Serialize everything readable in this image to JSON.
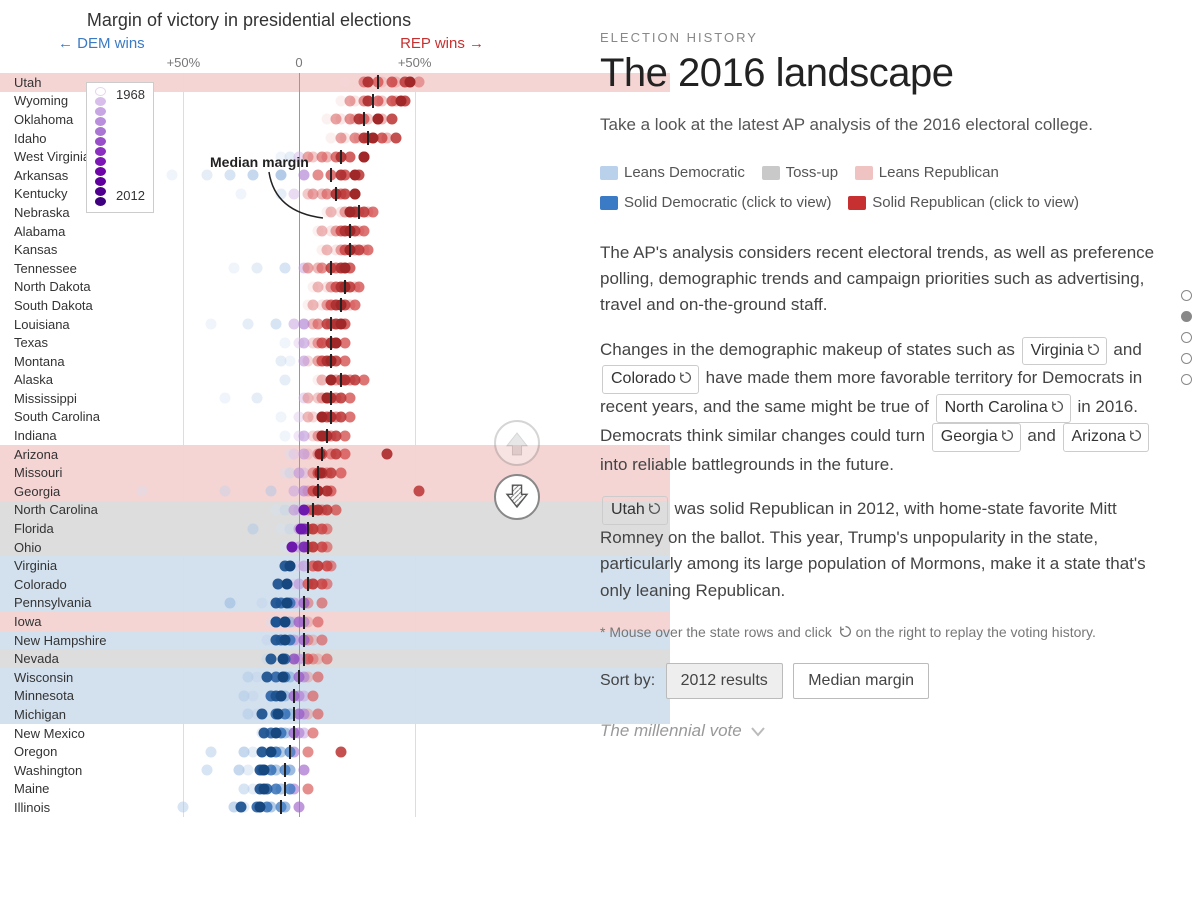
{
  "chart": {
    "title": "Margin of victory in presidential elections",
    "dem_label": "← DEM wins",
    "rep_label": "REP wins →",
    "axis_ticks": [
      {
        "label": "+50%",
        "value": -50
      },
      {
        "label": "0",
        "value": 0
      },
      {
        "label": "+50%",
        "value": 50
      }
    ],
    "xlim": [
      -80,
      80
    ],
    "median_label": "Median margin",
    "year_legend": {
      "start": "1968",
      "end": "2012"
    },
    "legend_colors": [
      "#e6d4f0",
      "#d8bfeb",
      "#c8a6e3",
      "#b98edc",
      "#a976d3",
      "#994ec9",
      "#8a2fbf",
      "#7b17b4",
      "#6d05a9",
      "#5f009e",
      "#4f008f",
      "#3f0080"
    ],
    "dem_palette": [
      "#d5e3f3",
      "#bfd4ec",
      "#a9c5e5",
      "#93b6de",
      "#7da6d6",
      "#6897cf",
      "#5288c8",
      "#3c79c1",
      "#2d6bb5",
      "#255fa3",
      "#1e5391",
      "#17477f"
    ],
    "rep_palette": [
      "#f6d6d6",
      "#f1c2c2",
      "#ecaeae",
      "#e79a9a",
      "#e28686",
      "#dd7272",
      "#d85e5e",
      "#d34a4a",
      "#c94040",
      "#bc3838",
      "#ae3030",
      "#a12828"
    ],
    "purple_palette": [
      "#e6d4f0",
      "#dbc3ea",
      "#d0b2e4",
      "#c5a1de",
      "#ba90d8",
      "#af7fd2",
      "#a46ecc",
      "#995dc6",
      "#8e4cc0",
      "#833bba",
      "#782ab4",
      "#6d19ae"
    ],
    "categories": {
      "leans_rep": "#f5d4d4",
      "tossup": "#dddddd",
      "leans_dem": "#d3e1ef"
    },
    "states": [
      {
        "name": "Utah",
        "band": "leans_rep",
        "median": 34,
        "dots": [
          20,
          30,
          36,
          42,
          48,
          52,
          28,
          34,
          40,
          46,
          30,
          48
        ]
      },
      {
        "name": "Wyoming",
        "band": null,
        "median": 32,
        "dots": [
          18,
          24,
          30,
          36,
          42,
          22,
          28,
          34,
          40,
          46,
          30,
          44
        ]
      },
      {
        "name": "Oklahoma",
        "band": null,
        "median": 28,
        "dots": [
          12,
          18,
          24,
          30,
          36,
          16,
          22,
          28,
          34,
          40,
          26,
          34
        ]
      },
      {
        "name": "Idaho",
        "band": null,
        "median": 30,
        "dots": [
          14,
          20,
          26,
          32,
          38,
          18,
          24,
          30,
          36,
          42,
          28,
          32
        ]
      },
      {
        "name": "West Virginia",
        "band": null,
        "median": 18,
        "dots": [
          -8,
          -4,
          0,
          6,
          12,
          4,
          10,
          16,
          22,
          28,
          18,
          28
        ]
      },
      {
        "name": "Arkansas",
        "band": null,
        "median": 14,
        "dots": [
          -55,
          -40,
          -30,
          -20,
          -8,
          2,
          8,
          14,
          20,
          26,
          18,
          24
        ]
      },
      {
        "name": "Kentucky",
        "band": null,
        "median": 16,
        "dots": [
          -25,
          -8,
          -2,
          4,
          10,
          6,
          12,
          18,
          24,
          20,
          16,
          24
        ]
      },
      {
        "name": "Nebraska",
        "band": null,
        "median": 26,
        "dots": [
          12,
          18,
          24,
          30,
          14,
          20,
          26,
          32,
          22,
          28,
          24,
          22
        ]
      },
      {
        "name": "Alabama",
        "band": null,
        "median": 22,
        "dots": [
          8,
          14,
          20,
          26,
          10,
          16,
          22,
          28,
          18,
          24,
          20,
          22
        ]
      },
      {
        "name": "Kansas",
        "band": null,
        "median": 22,
        "dots": [
          10,
          16,
          22,
          28,
          12,
          18,
          24,
          30,
          20,
          26,
          22,
          22
        ]
      },
      {
        "name": "Tennessee",
        "band": null,
        "median": 14,
        "dots": [
          -28,
          -18,
          -6,
          2,
          8,
          4,
          10,
          16,
          22,
          14,
          18,
          20
        ]
      },
      {
        "name": "North Dakota",
        "band": null,
        "median": 20,
        "dots": [
          6,
          12,
          18,
          24,
          8,
          14,
          20,
          26,
          16,
          22,
          18,
          20
        ]
      },
      {
        "name": "South Dakota",
        "band": null,
        "median": 18,
        "dots": [
          4,
          10,
          16,
          22,
          6,
          12,
          18,
          24,
          14,
          20,
          16,
          18
        ]
      },
      {
        "name": "Louisiana",
        "band": null,
        "median": 14,
        "dots": [
          -38,
          -22,
          -10,
          -2,
          6,
          2,
          8,
          14,
          20,
          12,
          16,
          18
        ]
      },
      {
        "name": "Texas",
        "band": null,
        "median": 14,
        "dots": [
          -6,
          0,
          6,
          12,
          2,
          8,
          14,
          20,
          10,
          16,
          14,
          16
        ]
      },
      {
        "name": "Montana",
        "band": null,
        "median": 14,
        "dots": [
          -4,
          -8,
          4,
          10,
          2,
          8,
          14,
          20,
          10,
          16,
          12,
          14
        ]
      },
      {
        "name": "Alaska",
        "band": null,
        "median": 18,
        "dots": [
          8,
          -6,
          14,
          20,
          10,
          16,
          22,
          28,
          18,
          24,
          20,
          14
        ]
      },
      {
        "name": "Mississippi",
        "band": null,
        "median": 14,
        "dots": [
          -32,
          -18,
          2,
          8,
          4,
          10,
          16,
          22,
          12,
          18,
          14,
          12
        ]
      },
      {
        "name": "South Carolina",
        "band": null,
        "median": 14,
        "dots": [
          -8,
          0,
          6,
          12,
          4,
          10,
          16,
          22,
          12,
          18,
          14,
          10
        ]
      },
      {
        "name": "Indiana",
        "band": null,
        "median": 12,
        "dots": [
          -6,
          0,
          6,
          12,
          2,
          8,
          14,
          20,
          10,
          16,
          12,
          10
        ]
      },
      {
        "name": "Arizona",
        "band": "leans_rep",
        "median": 10,
        "dots": [
          -4,
          -2,
          4,
          10,
          2,
          8,
          14,
          20,
          10,
          16,
          38,
          9
        ]
      },
      {
        "name": "Missouri",
        "band": "leans_rep",
        "median": 8,
        "dots": [
          -6,
          -4,
          2,
          8,
          0,
          6,
          12,
          18,
          8,
          14,
          10,
          9
        ]
      },
      {
        "name": "Georgia",
        "band": "leans_rep",
        "median": 8,
        "dots": [
          -68,
          -32,
          -12,
          -2,
          4,
          2,
          8,
          14,
          6,
          52,
          12,
          8
        ]
      },
      {
        "name": "North Carolina",
        "band": "tossup",
        "median": 6,
        "dots": [
          -10,
          -6,
          0,
          6,
          -2,
          4,
          10,
          16,
          6,
          12,
          8,
          2
        ]
      },
      {
        "name": "Florida",
        "band": "tossup",
        "median": 4,
        "dots": [
          -8,
          -4,
          -20,
          8,
          0,
          6,
          12,
          4,
          10,
          6,
          2,
          1
        ]
      },
      {
        "name": "Ohio",
        "band": "tossup",
        "median": 4,
        "dots": [
          -6,
          -2,
          4,
          10,
          0,
          6,
          12,
          4,
          10,
          6,
          2,
          -3
        ]
      },
      {
        "name": "Virginia",
        "band": "leans_dem",
        "median": 4,
        "dots": [
          -4,
          0,
          6,
          12,
          2,
          8,
          14,
          6,
          12,
          8,
          -6,
          -4
        ]
      },
      {
        "name": "Colorado",
        "band": "leans_dem",
        "median": 4,
        "dots": [
          -8,
          -2,
          4,
          10,
          0,
          6,
          12,
          4,
          10,
          6,
          -9,
          -5
        ]
      },
      {
        "name": "Pennsylvania",
        "band": "leans_dem",
        "median": 2,
        "dots": [
          -10,
          -16,
          0,
          -30,
          -2,
          4,
          10,
          2,
          -4,
          -8,
          -10,
          -5
        ]
      },
      {
        "name": "Iowa",
        "band": "leans_rep",
        "median": 2,
        "dots": [
          -12,
          -8,
          -2,
          4,
          -4,
          2,
          8,
          0,
          -6,
          -10,
          -10,
          -6
        ]
      },
      {
        "name": "New Hampshire",
        "band": "leans_dem",
        "median": 2,
        "dots": [
          -10,
          -14,
          0,
          6,
          -2,
          4,
          10,
          2,
          -4,
          -8,
          -10,
          -6
        ]
      },
      {
        "name": "Nevada",
        "band": "tossup",
        "median": 2,
        "dots": [
          -8,
          -14,
          2,
          8,
          0,
          6,
          12,
          4,
          -2,
          -6,
          -12,
          -7
        ]
      },
      {
        "name": "Wisconsin",
        "band": "leans_dem",
        "median": 0,
        "dots": [
          -12,
          -18,
          -22,
          4,
          -4,
          2,
          8,
          0,
          -6,
          -10,
          -14,
          -7
        ]
      },
      {
        "name": "Minnesota",
        "band": "leans_dem",
        "median": -2,
        "dots": [
          -14,
          -20,
          -24,
          2,
          -6,
          0,
          6,
          -2,
          -8,
          -12,
          -10,
          -8
        ]
      },
      {
        "name": "Michigan",
        "band": "leans_dem",
        "median": -2,
        "dots": [
          -12,
          -18,
          -22,
          4,
          -4,
          2,
          8,
          0,
          -6,
          -10,
          -16,
          -9
        ]
      },
      {
        "name": "New Mexico",
        "band": null,
        "median": -2,
        "dots": [
          -10,
          -16,
          -4,
          2,
          -6,
          0,
          6,
          -2,
          -8,
          -12,
          -15,
          -10
        ]
      },
      {
        "name": "Oregon",
        "band": null,
        "median": -4,
        "dots": [
          -14,
          -20,
          -38,
          -24,
          -8,
          -2,
          4,
          -4,
          -10,
          18,
          -16,
          -12
        ]
      },
      {
        "name": "Washington",
        "band": null,
        "median": -6,
        "dots": [
          -16,
          -22,
          -40,
          -26,
          -10,
          -4,
          2,
          -6,
          -12,
          -16,
          -17,
          -15
        ]
      },
      {
        "name": "Maine",
        "band": null,
        "median": -6,
        "dots": [
          -14,
          -20,
          -24,
          -4,
          -8,
          -2,
          4,
          -4,
          -10,
          -14,
          -17,
          -15
        ]
      },
      {
        "name": "Illinois",
        "band": null,
        "median": -8,
        "dots": [
          -18,
          -24,
          -50,
          -28,
          -12,
          -6,
          0,
          -8,
          -14,
          -18,
          -25,
          -17
        ]
      }
    ]
  },
  "story": {
    "eyebrow": "ELECTION HISTORY",
    "headline": "The 2016 landscape",
    "deck": "Take a look at the latest AP analysis of the 2016 electoral college.",
    "legend": {
      "leans_dem": {
        "color": "#b9d1eb",
        "label": "Leans Democratic"
      },
      "tossup": {
        "color": "#c9c9c9",
        "label": "Toss-up"
      },
      "leans_rep": {
        "color": "#f0c3c3",
        "label": "Leans Republican"
      },
      "solid_dem": {
        "color": "#3b7ac4",
        "label": "Solid Democratic (click to view)"
      },
      "solid_rep": {
        "color": "#c73030",
        "label": "Solid Republican (click to view)"
      }
    },
    "para1": "The AP's analysis considers recent electoral trends, as well as preference polling, demographic trends and campaign priorities such as advertising, travel and on-the-ground staff.",
    "para2_a": "Changes in the demographic makeup of states such as ",
    "chip_va": "Virginia",
    "para2_b": " and ",
    "chip_co": "Colorado",
    "para2_c": " have made them more favorable territory for Democrats in recent years, and the same might be true of ",
    "chip_nc": "North Carolina",
    "para2_d": " in 2016. Democrats think similar changes could turn ",
    "chip_ga": "Georgia",
    "para2_e": " and ",
    "chip_az": "Arizona",
    "para2_f": " into reliable battlegrounds in the future.",
    "chip_ut": "Utah",
    "para3": " was solid Republican in 2012, with home-state favorite Mitt Romney on the ballot. This year, Trump's unpopularity in the state, particularly among its large population of Mormons, make it a state that's only leaning Republican.",
    "footnote_a": "* Mouse over the state rows and click ",
    "footnote_b": " on the right to replay the voting history.",
    "sort_label": "Sort by:",
    "sort_opts": [
      "2012 results",
      "Median margin"
    ],
    "next": "The millennial vote"
  },
  "nav": {
    "active_index": 1,
    "count": 5
  }
}
